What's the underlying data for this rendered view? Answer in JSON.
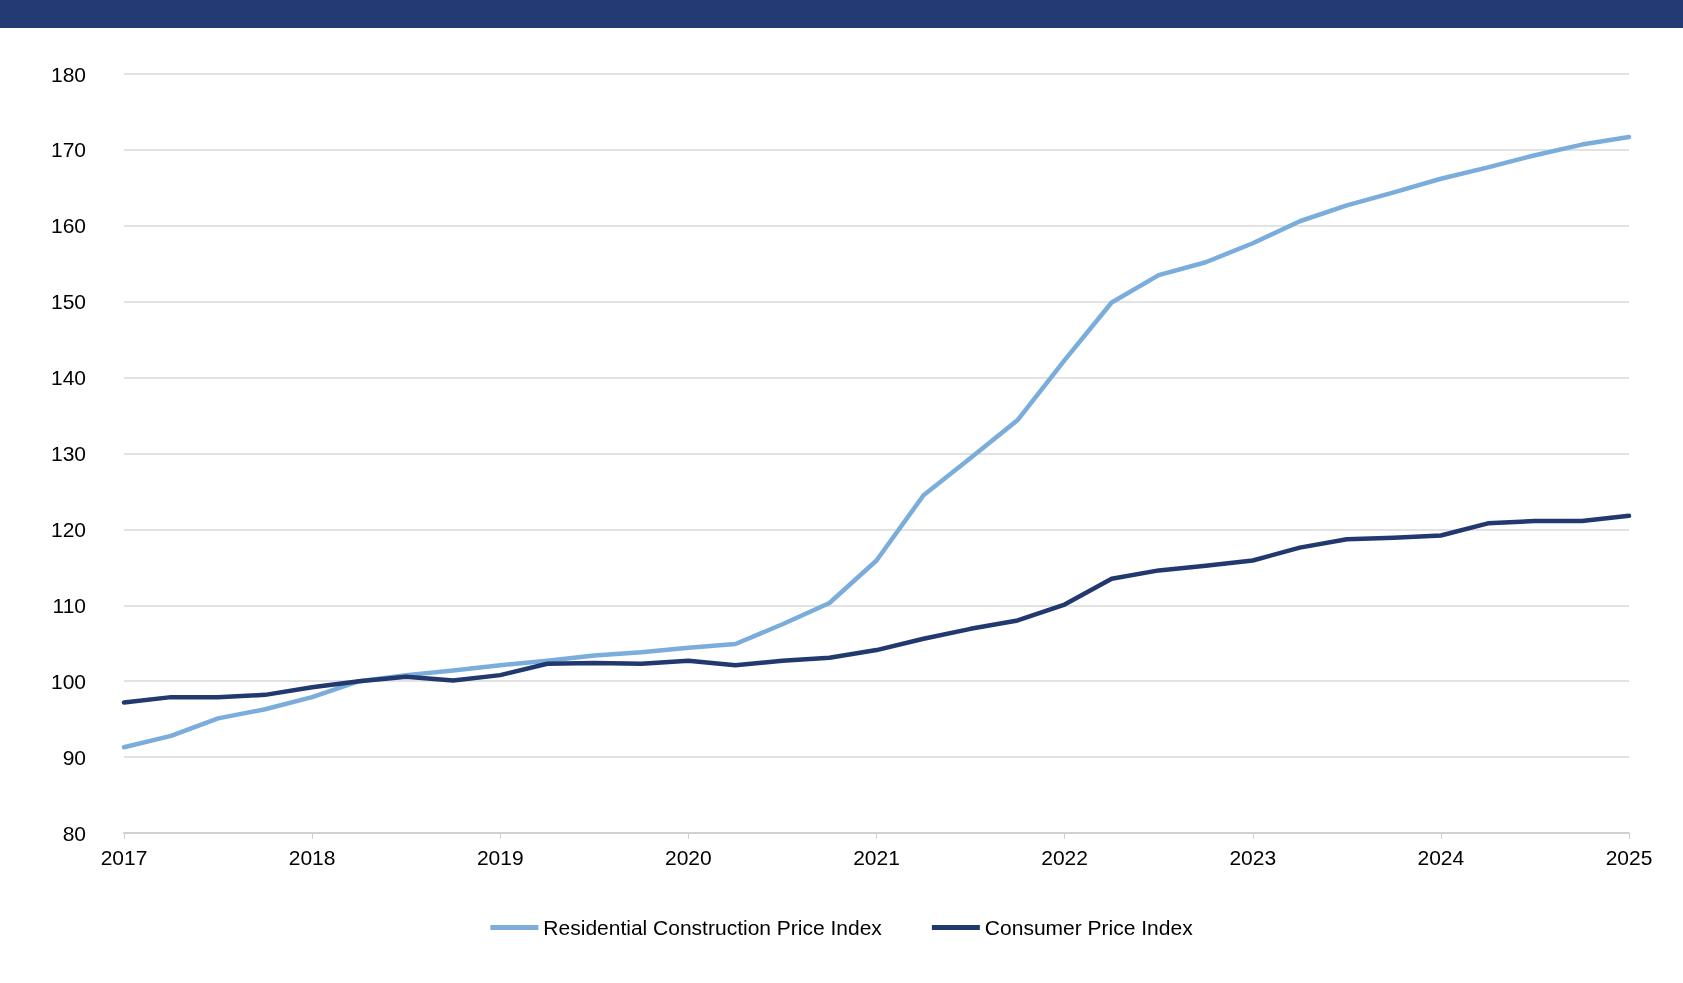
{
  "chart_data": {
    "type": "line",
    "categories": [
      "2017",
      null,
      null,
      null,
      "2018",
      null,
      null,
      null,
      "2019",
      null,
      null,
      null,
      "2020",
      null,
      null,
      null,
      "2021",
      null,
      null,
      null,
      "2022",
      null,
      null,
      null,
      "2023",
      null,
      null,
      null,
      "2024",
      null,
      null,
      null,
      "2025"
    ],
    "series": [
      {
        "name": "Residential Construction Price Index",
        "color": "#7aaddc",
        "values": [
          91.3,
          92.8,
          95.1,
          96.3,
          97.9,
          100.0,
          100.8,
          101.4,
          102.1,
          102.7,
          103.4,
          103.8,
          104.4,
          104.9,
          107.5,
          110.3,
          115.9,
          124.5,
          129.4,
          134.4,
          142.3,
          149.9,
          153.5,
          155.2,
          157.7,
          160.6,
          162.7,
          164.4,
          166.2,
          167.7,
          169.3,
          170.7,
          171.7
        ]
      },
      {
        "name": "Consumer Price Index",
        "color": "#22396f",
        "values": [
          97.2,
          97.9,
          97.9,
          98.2,
          99.2,
          100.0,
          100.6,
          100.1,
          100.8,
          102.3,
          102.4,
          102.3,
          102.7,
          102.1,
          102.7,
          103.1,
          104.1,
          105.6,
          106.9,
          108.0,
          110.1,
          113.5,
          114.6,
          115.2,
          115.9,
          117.6,
          118.7,
          118.9,
          119.2,
          120.8,
          121.1,
          121.1,
          121.8
        ]
      }
    ],
    "ylim": [
      80,
      180
    ],
    "yticks": [
      80,
      90,
      100,
      110,
      120,
      130,
      140,
      150,
      160,
      170,
      180
    ],
    "grid": "y",
    "legend": "bottom",
    "marker": "none",
    "line_style": "solid"
  }
}
